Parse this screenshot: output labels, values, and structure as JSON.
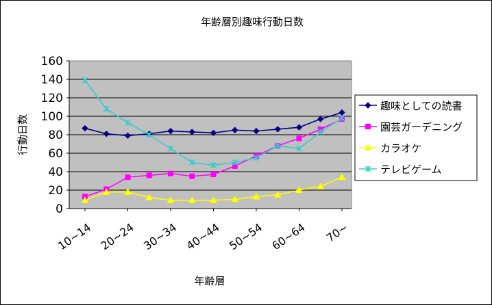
{
  "chart_data": {
    "type": "line",
    "title": "年齢層別趣味行動日数",
    "xlabel": "年齢層",
    "ylabel": "行動日数",
    "ylim": [
      0,
      160
    ],
    "yticks": [
      0,
      20,
      40,
      60,
      80,
      100,
      120,
      140,
      160
    ],
    "x": [
      1,
      2,
      3,
      4,
      5,
      6,
      7,
      8,
      9,
      10,
      11,
      12,
      13
    ],
    "xtick_labels": [
      {
        "label": "10~14",
        "x": 1
      },
      {
        "label": "20~24",
        "x": 3
      },
      {
        "label": "30~34",
        "x": 5
      },
      {
        "label": "40~44",
        "x": 7
      },
      {
        "label": "50~54",
        "x": 9
      },
      {
        "label": "60~64",
        "x": 11
      },
      {
        "label": "70~",
        "x": 13
      }
    ],
    "plot_background": "#c0c0c0",
    "grid": "horizontal",
    "legend_position": "right",
    "series": [
      {
        "name": "趣味としての読書",
        "color": "#000080",
        "marker": "diamond",
        "values": [
          87,
          81,
          79,
          81,
          84,
          83,
          82,
          85,
          84,
          86,
          88,
          97,
          104
        ]
      },
      {
        "name": "園芸ガーデニング",
        "color": "#ff00ff",
        "marker": "square",
        "values": [
          13,
          21,
          34,
          36,
          38,
          35,
          37,
          46,
          57,
          68,
          76,
          86,
          97
        ]
      },
      {
        "name": "カラオケ",
        "color": "#ffff00",
        "marker": "triangle",
        "values": [
          9,
          18,
          18,
          12,
          9,
          9,
          9,
          10,
          13,
          15,
          20,
          24,
          34
        ]
      },
      {
        "name": "テレビゲーム",
        "color": "#33cccc",
        "marker": "x",
        "values": [
          139,
          108,
          93,
          80,
          65,
          50,
          47,
          50,
          55,
          68,
          65,
          83,
          98
        ]
      }
    ]
  }
}
